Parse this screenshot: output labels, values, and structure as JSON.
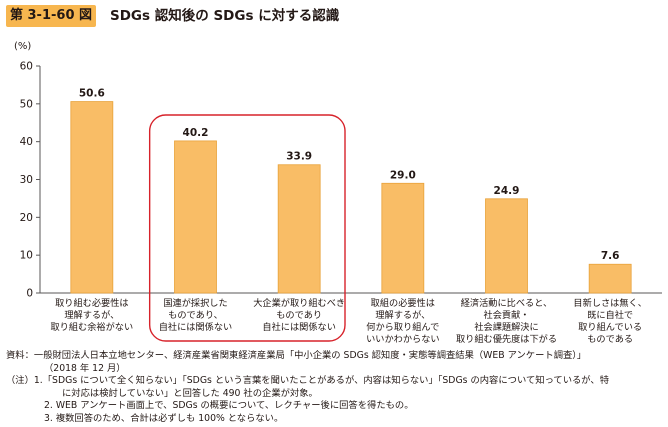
{
  "figure_label": "第 3-1-60 図",
  "figure_title": "SDGs 認知後の SDGs に対する認識",
  "chart_data": {
    "type": "bar",
    "y_unit_label": "(%)",
    "ylim": [
      0,
      60
    ],
    "yticks": [
      "0",
      "10",
      "20",
      "30",
      "40",
      "50",
      "60"
    ],
    "categories": [
      [
        "取り組む必要性は",
        "理解するが、",
        "取り組む余裕がない"
      ],
      [
        "国連が採択した",
        "ものであり、",
        "自社には関係ない"
      ],
      [
        "大企業が取り組むべき",
        "ものであり",
        "自社には関係ない"
      ],
      [
        "取組の必要性は",
        "理解するが、",
        "何から取り組んで",
        "いいかわからない"
      ],
      [
        "経済活動に比べると、",
        "社会貢献・",
        "社会課題解決に",
        "取り組む優先度は下がる"
      ],
      [
        "目新しさは無く、",
        "既に自社で",
        "取り組んでいる",
        "ものである"
      ]
    ],
    "values": [
      50.6,
      40.2,
      33.9,
      29.0,
      24.9,
      7.6
    ],
    "data_labels": [
      "50.6",
      "40.2",
      "33.9",
      "29.0",
      "24.9",
      "7.6"
    ],
    "highlighted_categories": [
      1,
      2
    ],
    "grid": false,
    "colors": {
      "bar": "#f9bd66",
      "bar_stroke": "#e8a23a",
      "highlight": "#d7222a",
      "axis": "#595757"
    }
  },
  "notes": [
    "資料：一般財団法人日本立地センター、経済産業省関東経済産業局「中小企業の SDGs 認知度・実態等調査結果（WEB アンケート調査）」",
    "（2018 年 12 月）",
    "（注）1.「SDGs について全く知らない」「SDGs という言葉を聞いたことがあるが、内容は知らない」「SDGs の内容について知っているが、特",
    "に対応は検討していない」と回答した 490 社の企業が対象。",
    "2. WEB アンケート画面上で、SDGs の概要について、レクチャー後に回答を得たもの。",
    "3. 複数回答のため、合計は必ずしも 100% とならない。"
  ]
}
